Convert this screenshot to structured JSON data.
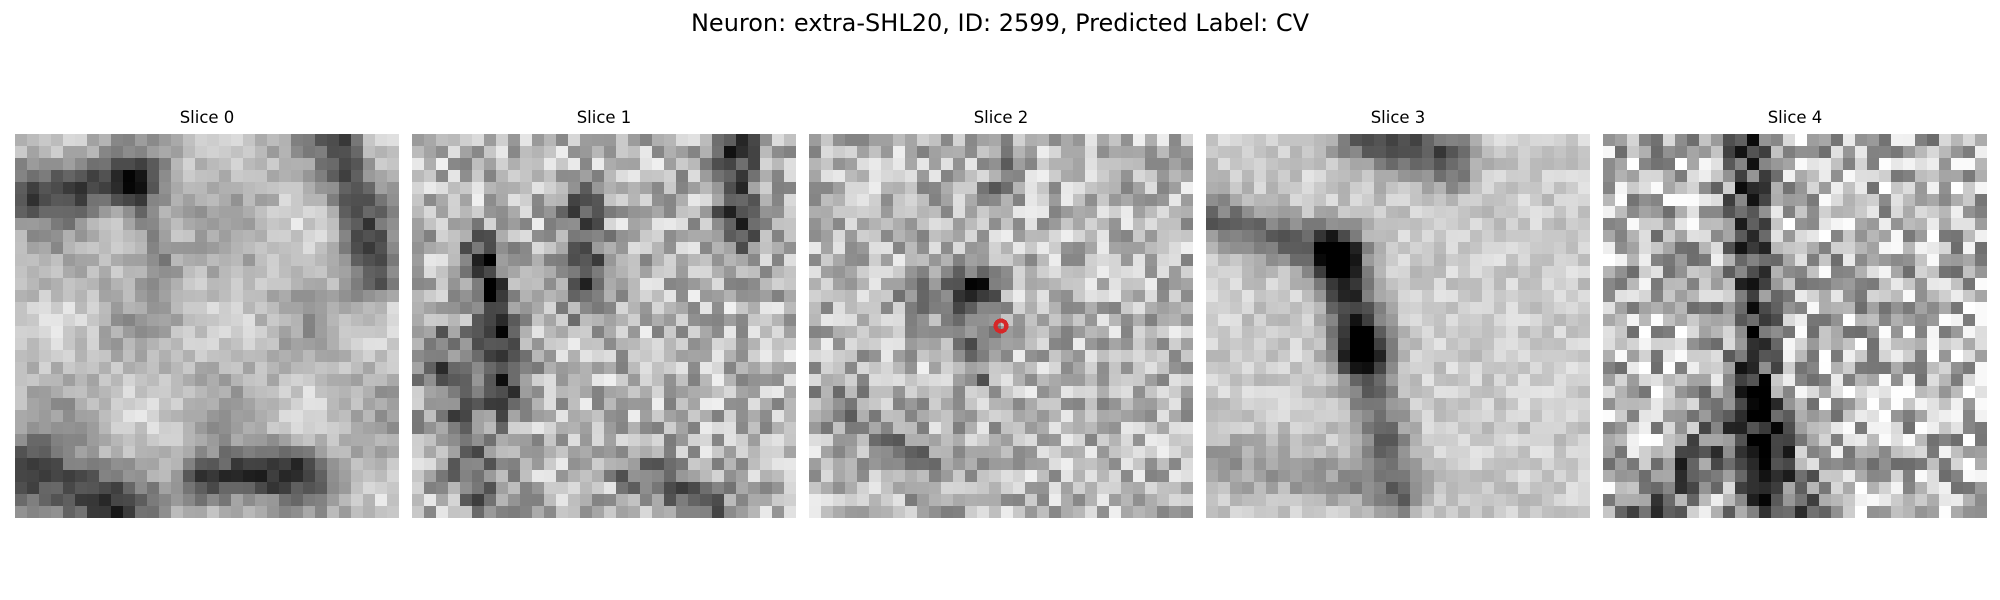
{
  "figure": {
    "title": "Neuron: extra-SHL20, ID: 2599, Predicted Label: CV"
  },
  "panels": [
    {
      "title": "Slice 0",
      "style": "smooth",
      "seed": 11,
      "marker": false
    },
    {
      "title": "Slice 1",
      "style": "grainy",
      "seed": 23,
      "marker": false
    },
    {
      "title": "Slice 2",
      "style": "grainy",
      "seed": 37,
      "marker": true
    },
    {
      "title": "Slice 3",
      "style": "smooth",
      "seed": 51,
      "marker": false
    },
    {
      "title": "Slice 4",
      "style": "noisy",
      "seed": 67,
      "marker": false
    }
  ],
  "colors": {
    "marker": "#d62728"
  }
}
